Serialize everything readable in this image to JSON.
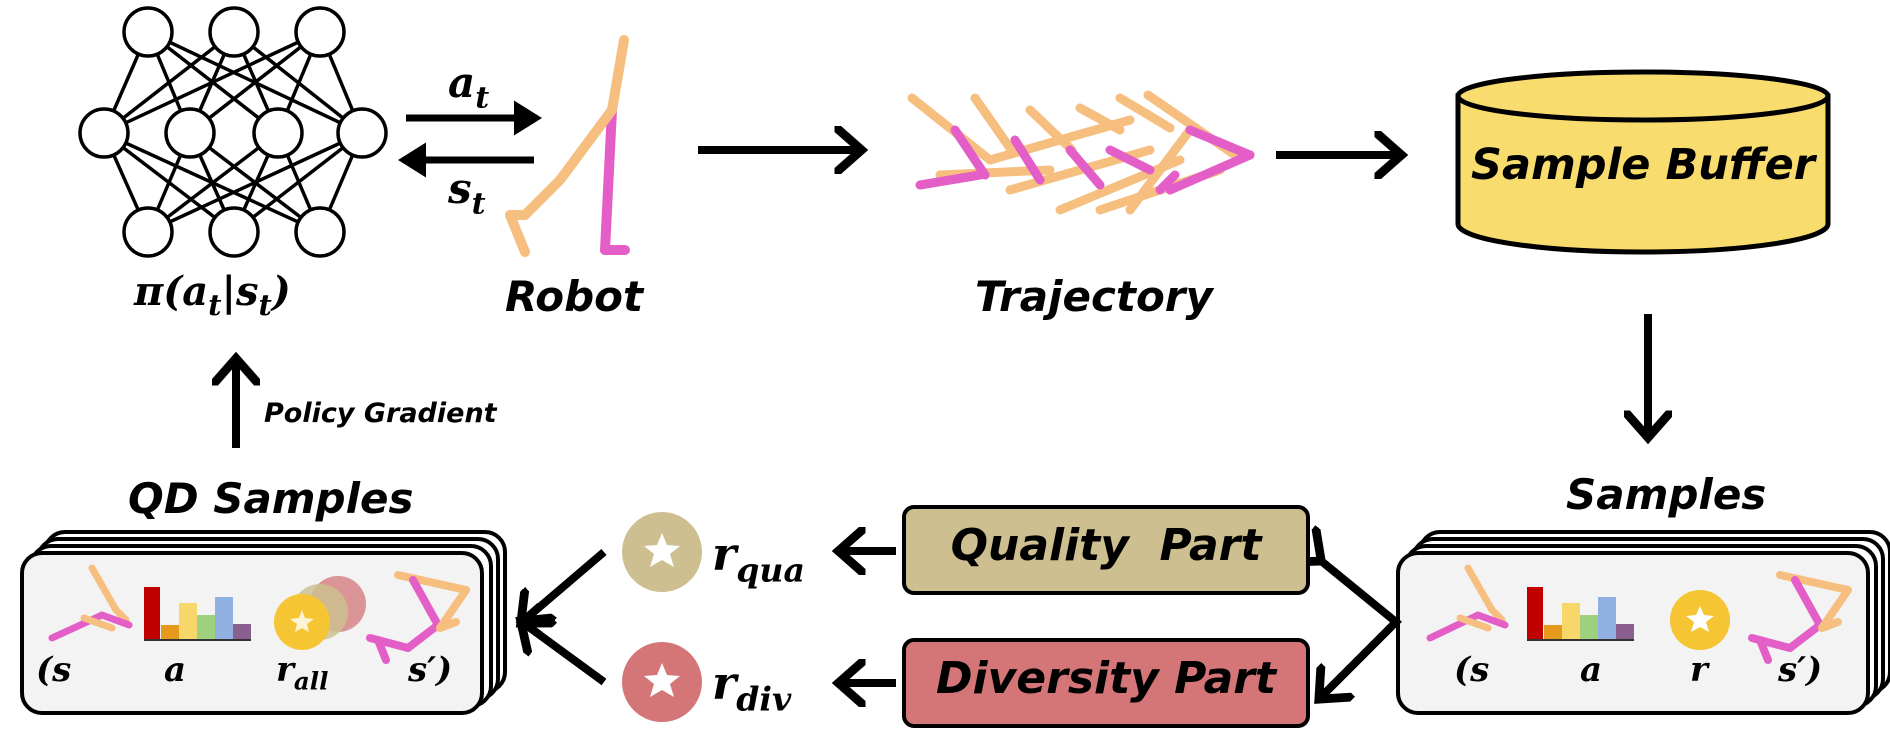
{
  "policy": {
    "label_pi": "π(a",
    "label_sub_t1": "t",
    "label_mid": "|s",
    "label_sub_t2": "t",
    "label_close": ")"
  },
  "actions": {
    "a_base": "a",
    "a_sub": "t",
    "s_base": "s",
    "s_sub": "t"
  },
  "robot_label": "Robot",
  "trajectory_label": "Trajectory",
  "buffer_label": "Sample Buffer",
  "samples_label": "Samples",
  "qd_samples_label": "QD Samples",
  "policy_gradient_label": "Policy Gradient",
  "quality_part_label": "Quality  Part",
  "diversity_part_label": "Diversity Part",
  "r_qua": {
    "base": "r",
    "sub": "qua"
  },
  "r_div": {
    "base": "r",
    "sub": "div"
  },
  "samples_tuple": {
    "s": "(s",
    "a": "a",
    "r": "r",
    "s_prime": "s′)"
  },
  "qd_tuple": {
    "s": "(s",
    "a": "a",
    "r_base": "r",
    "r_sub": "all",
    "s_prime": "s′)"
  },
  "colors": {
    "quality": "#cdbf8f",
    "diversity": "#d47678",
    "buffer": "#f8dc6e",
    "robot_light": "#f6bf80",
    "robot_magenta": "#e45ec8",
    "star_gold": "#f6c533"
  }
}
